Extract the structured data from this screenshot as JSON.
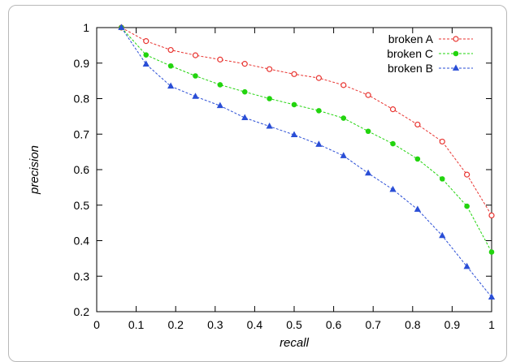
{
  "chart_data": {
    "type": "line",
    "xlabel": "recall",
    "ylabel": "precision",
    "xlim": [
      0,
      1
    ],
    "ylim": [
      0.2,
      1
    ],
    "xticks": [
      "0",
      "0.1",
      "0.2",
      "0.3",
      "0.4",
      "0.5",
      "0.6",
      "0.7",
      "0.8",
      "0.9",
      "1"
    ],
    "yticks": [
      "0.2",
      "0.3",
      "0.4",
      "0.5",
      "0.6",
      "0.7",
      "0.8",
      "0.9",
      "1"
    ],
    "grid": false,
    "legend_position": "top-right",
    "x": [
      0.0625,
      0.125,
      0.1875,
      0.25,
      0.3125,
      0.375,
      0.4375,
      0.5,
      0.5625,
      0.625,
      0.6875,
      0.75,
      0.8125,
      0.875,
      0.9375,
      1.0
    ],
    "series": [
      {
        "name": "broken A",
        "color": "#e8332f",
        "marker": "open-circle",
        "values": [
          1.0,
          0.962,
          0.937,
          0.922,
          0.91,
          0.898,
          0.883,
          0.869,
          0.858,
          0.838,
          0.81,
          0.77,
          0.727,
          0.679,
          0.586,
          0.471
        ]
      },
      {
        "name": "broken C",
        "color": "#22d40e",
        "marker": "filled-circle",
        "values": [
          1.0,
          0.923,
          0.892,
          0.864,
          0.839,
          0.819,
          0.8,
          0.783,
          0.766,
          0.745,
          0.708,
          0.673,
          0.63,
          0.574,
          0.497,
          0.368
        ]
      },
      {
        "name": "broken B",
        "color": "#2a4ed6",
        "marker": "filled-triangle",
        "values": [
          1.0,
          0.897,
          0.835,
          0.806,
          0.78,
          0.746,
          0.722,
          0.698,
          0.671,
          0.639,
          0.59,
          0.544,
          0.488,
          0.414,
          0.327,
          0.241
        ]
      }
    ]
  }
}
